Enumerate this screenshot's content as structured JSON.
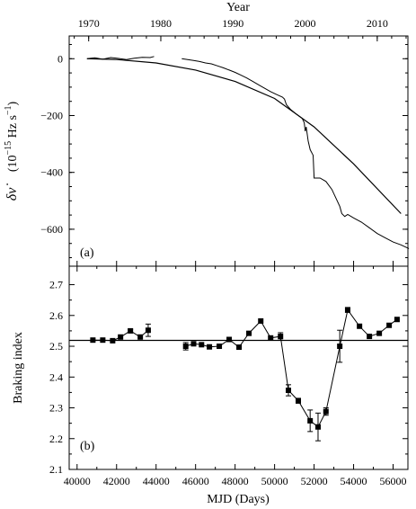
{
  "chart_data": [
    {
      "type": "line",
      "panel_label": "(a)",
      "top_axis": {
        "label": "Year",
        "ticks": [
          1970,
          1980,
          1990,
          2000,
          2010
        ],
        "tick_mjd": [
          40587,
          44239,
          47892,
          51544,
          55197
        ]
      },
      "ylabel": "δν̇  (10⁻¹⁵ Hz s⁻¹)",
      "ylabel_parts": {
        "symbol": "δν̇",
        "unit_open": "(10",
        "unit_exp": "−15",
        "unit_mid": " Hz s",
        "unit_exp2": "−1",
        "unit_close": ")"
      },
      "xlim": [
        39600,
        56750
      ],
      "ylim": [
        -730,
        80
      ],
      "yticks": [
        0,
        -200,
        -400,
        -600
      ],
      "series": [
        {
          "style": "solid-thin",
          "segments": [
            {
              "x": [
                40500,
                40900,
                41300,
                41700,
                42100,
                42500,
                42900,
                43300,
                43700,
                43900
              ],
              "y": [
                0,
                3,
                -2,
                4,
                1,
                -3,
                2,
                5,
                4,
                8
              ]
            },
            {
              "x": [
                45300,
                45600,
                45900,
                46200,
                46500,
                46800,
                47100,
                47400,
                47700,
                48000,
                48300,
                48600,
                48900,
                49200,
                49500,
                49800,
                50100,
                50400,
                50500,
                50600,
                50800,
                51100,
                51400,
                51500,
                51550,
                51600,
                51700,
                51800,
                51950,
                52000,
                52300,
                52600,
                52900,
                53300,
                53400,
                53550,
                53700,
                54000,
                54400,
                54800,
                55200,
                55600,
                56000,
                56400,
                56800
              ],
              "y": [
                0,
                -3,
                -6,
                -10,
                -15,
                -18,
                -25,
                -32,
                -40,
                -48,
                -58,
                -68,
                -80,
                -92,
                -104,
                -116,
                -126,
                -135,
                -142,
                -162,
                -178,
                -195,
                -210,
                -225,
                -255,
                -240,
                -290,
                -320,
                -340,
                -420,
                -420,
                -432,
                -460,
                -520,
                -545,
                -555,
                -548,
                -560,
                -575,
                -595,
                -615,
                -630,
                -645,
                -655,
                -668
              ]
            }
          ]
        },
        {
          "style": "smooth-fit",
          "x": [
            40500,
            42000,
            44000,
            46000,
            48000,
            50000,
            52000,
            54000,
            56400
          ],
          "y": [
            0,
            -3,
            -15,
            -40,
            -80,
            -140,
            -240,
            -370,
            -545
          ]
        }
      ]
    },
    {
      "type": "line",
      "panel_label": "(b)",
      "xlabel": "MJD  (Days)",
      "ylabel": "Braking index",
      "xlim": [
        39600,
        56750
      ],
      "xticks": [
        40000,
        42000,
        44000,
        46000,
        48000,
        50000,
        52000,
        54000,
        56000
      ],
      "ylim": [
        2.1,
        2.76
      ],
      "yticks": [
        2.1,
        2.2,
        2.3,
        2.4,
        2.5,
        2.6,
        2.7
      ],
      "reference_line": 2.519,
      "series": [
        {
          "style": "markers-line",
          "segments": [
            {
              "x": [
                40800,
                41300,
                41800,
                42200,
                42700,
                43200,
                43600
              ],
              "y": [
                2.52,
                2.52,
                2.518,
                2.53,
                2.55,
                2.53,
                2.552
              ],
              "err": [
                0,
                0,
                0,
                0,
                0.005,
                0,
                0.02
              ]
            },
            {
              "x": [
                45500,
                45900,
                46300,
                46700,
                47200,
                47700,
                48200,
                48700,
                49300,
                49800,
                50300,
                50700,
                51200,
                51800,
                52200,
                52600,
                53300,
                53700,
                54300,
                54800,
                55300,
                55800,
                56200
              ],
              "y": [
                2.5,
                2.508,
                2.505,
                2.498,
                2.5,
                2.522,
                2.497,
                2.542,
                2.582,
                2.527,
                2.532,
                2.357,
                2.323,
                2.258,
                2.238,
                2.288,
                2.5,
                2.618,
                2.565,
                2.532,
                2.542,
                2.568,
                2.587
              ],
              "err": [
                0.012,
                0,
                0,
                0,
                0,
                0,
                0,
                0,
                0,
                0,
                0.012,
                0.018,
                0.008,
                0.035,
                0.045,
                0.012,
                0.052,
                0.008,
                0,
                0,
                0,
                0,
                0
              ]
            }
          ]
        }
      ]
    }
  ]
}
